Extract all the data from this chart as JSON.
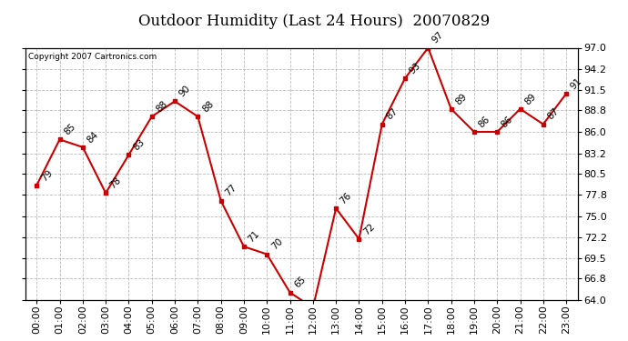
{
  "title": "Outdoor Humidity (Last 24 Hours)  20070829",
  "copyright": "Copyright 2007 Cartronics.com",
  "hours": [
    0,
    1,
    2,
    3,
    4,
    5,
    6,
    7,
    8,
    9,
    10,
    11,
    12,
    13,
    14,
    15,
    16,
    17,
    18,
    19,
    20,
    21,
    22,
    23
  ],
  "values": [
    79,
    85,
    84,
    78,
    83,
    88,
    90,
    88,
    77,
    71,
    70,
    65,
    63,
    76,
    72,
    87,
    93,
    97,
    89,
    86,
    86,
    89,
    87,
    91
  ],
  "xlabels": [
    "00:00",
    "01:00",
    "02:00",
    "03:00",
    "04:00",
    "05:00",
    "06:00",
    "07:00",
    "08:00",
    "09:00",
    "10:00",
    "11:00",
    "12:00",
    "13:00",
    "14:00",
    "15:00",
    "16:00",
    "17:00",
    "18:00",
    "19:00",
    "20:00",
    "21:00",
    "22:00",
    "23:00"
  ],
  "ylim": [
    64.0,
    97.0
  ],
  "yticks": [
    64.0,
    66.8,
    69.5,
    72.2,
    75.0,
    77.8,
    80.5,
    83.2,
    86.0,
    88.8,
    91.5,
    94.2,
    97.0
  ],
  "line_color": "#cc0000",
  "marker_color": "#cc0000",
  "bg_color": "#ffffff",
  "plot_bg_color": "#ffffff",
  "grid_color": "#aaaaaa",
  "title_fontsize": 12,
  "tick_fontsize": 8,
  "annot_fontsize": 7.5
}
